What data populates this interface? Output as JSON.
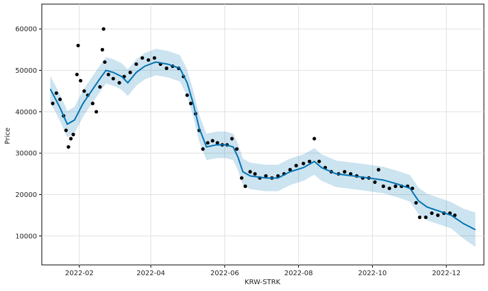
{
  "chart_data": {
    "type": "scatter",
    "xlabel": "KRW-STRK",
    "ylabel": "Price",
    "x_range": [
      "2022-01-01",
      "2023-01-01"
    ],
    "ylim": [
      3000,
      66000
    ],
    "grid": true,
    "x_ticks": [
      "2022-02",
      "2022-04",
      "2022-06",
      "2022-08",
      "2022-10",
      "2022-12"
    ],
    "y_ticks": [
      10000,
      20000,
      30000,
      40000,
      50000,
      60000
    ],
    "colors": {
      "observed": "#000000",
      "forecast": "#0072B2",
      "interval": "#0072B2"
    },
    "series": [
      {
        "role": "observed",
        "points": [
          [
            "2022-01-10",
            42000
          ],
          [
            "2022-01-13",
            44500
          ],
          [
            "2022-01-16",
            43000
          ],
          [
            "2022-01-19",
            39000
          ],
          [
            "2022-01-21",
            35500
          ],
          [
            "2022-01-23",
            31500
          ],
          [
            "2022-01-25",
            33500
          ],
          [
            "2022-01-27",
            34500
          ],
          [
            "2022-01-30",
            49000
          ],
          [
            "2022-01-31",
            56000
          ],
          [
            "2022-02-02",
            47500
          ],
          [
            "2022-02-05",
            45000
          ],
          [
            "2022-02-08",
            44000
          ],
          [
            "2022-02-12",
            42000
          ],
          [
            "2022-02-15",
            40000
          ],
          [
            "2022-02-18",
            46000
          ],
          [
            "2022-02-20",
            55000
          ],
          [
            "2022-02-21",
            60000
          ],
          [
            "2022-02-22",
            52000
          ],
          [
            "2022-02-25",
            49000
          ],
          [
            "2022-03-01",
            48000
          ],
          [
            "2022-03-06",
            47000
          ],
          [
            "2022-03-10",
            48500
          ],
          [
            "2022-03-15",
            49500
          ],
          [
            "2022-03-20",
            51500
          ],
          [
            "2022-03-25",
            53000
          ],
          [
            "2022-03-30",
            52500
          ],
          [
            "2022-04-04",
            53000
          ],
          [
            "2022-04-09",
            51500
          ],
          [
            "2022-04-14",
            50500
          ],
          [
            "2022-04-19",
            51000
          ],
          [
            "2022-04-24",
            50500
          ],
          [
            "2022-04-28",
            48500
          ],
          [
            "2022-05-01",
            44000
          ],
          [
            "2022-05-04",
            42000
          ],
          [
            "2022-05-08",
            39500
          ],
          [
            "2022-05-11",
            35500
          ],
          [
            "2022-05-14",
            31000
          ],
          [
            "2022-05-18",
            32500
          ],
          [
            "2022-05-22",
            33000
          ],
          [
            "2022-05-26",
            32500
          ],
          [
            "2022-05-30",
            32000
          ],
          [
            "2022-06-03",
            32000
          ],
          [
            "2022-06-07",
            33500
          ],
          [
            "2022-06-11",
            31000
          ],
          [
            "2022-06-15",
            24000
          ],
          [
            "2022-06-18",
            22000
          ],
          [
            "2022-06-22",
            25500
          ],
          [
            "2022-06-26",
            25000
          ],
          [
            "2022-06-30",
            24000
          ],
          [
            "2022-07-05",
            24500
          ],
          [
            "2022-07-10",
            24000
          ],
          [
            "2022-07-15",
            24500
          ],
          [
            "2022-07-20",
            25000
          ],
          [
            "2022-07-25",
            26000
          ],
          [
            "2022-07-30",
            27000
          ],
          [
            "2022-08-05",
            27500
          ],
          [
            "2022-08-10",
            28000
          ],
          [
            "2022-08-14",
            33500
          ],
          [
            "2022-08-18",
            28000
          ],
          [
            "2022-08-23",
            26500
          ],
          [
            "2022-08-28",
            25500
          ],
          [
            "2022-09-03",
            25000
          ],
          [
            "2022-09-08",
            25500
          ],
          [
            "2022-09-13",
            25000
          ],
          [
            "2022-09-18",
            24500
          ],
          [
            "2022-09-23",
            24000
          ],
          [
            "2022-09-28",
            24000
          ],
          [
            "2022-10-03",
            23000
          ],
          [
            "2022-10-06",
            26000
          ],
          [
            "2022-10-10",
            22000
          ],
          [
            "2022-10-15",
            21500
          ],
          [
            "2022-10-20",
            22000
          ],
          [
            "2022-10-25",
            22000
          ],
          [
            "2022-10-30",
            22000
          ],
          [
            "2022-11-03",
            21500
          ],
          [
            "2022-11-06",
            18000
          ],
          [
            "2022-11-09",
            14500
          ],
          [
            "2022-11-14",
            14500
          ],
          [
            "2022-11-19",
            15500
          ],
          [
            "2022-11-24",
            15000
          ],
          [
            "2022-11-29",
            15500
          ],
          [
            "2022-12-04",
            15500
          ],
          [
            "2022-12-08",
            15000
          ]
        ]
      },
      {
        "role": "forecast",
        "points": [
          [
            "2022-01-08",
            45500
          ],
          [
            "2022-01-16",
            41000
          ],
          [
            "2022-01-22",
            37000
          ],
          [
            "2022-01-28",
            38000
          ],
          [
            "2022-02-04",
            42000
          ],
          [
            "2022-02-11",
            45000
          ],
          [
            "2022-02-18",
            48000
          ],
          [
            "2022-02-23",
            50000
          ],
          [
            "2022-03-01",
            49500
          ],
          [
            "2022-03-08",
            48500
          ],
          [
            "2022-03-13",
            47000
          ],
          [
            "2022-03-20",
            49500
          ],
          [
            "2022-03-27",
            51000
          ],
          [
            "2022-04-05",
            52000
          ],
          [
            "2022-04-15",
            51500
          ],
          [
            "2022-04-25",
            50500
          ],
          [
            "2022-05-01",
            47000
          ],
          [
            "2022-05-06",
            42000
          ],
          [
            "2022-05-11",
            36000
          ],
          [
            "2022-05-17",
            31500
          ],
          [
            "2022-05-25",
            32000
          ],
          [
            "2022-06-02",
            32000
          ],
          [
            "2022-06-08",
            31500
          ],
          [
            "2022-06-12",
            29000
          ],
          [
            "2022-06-16",
            25500
          ],
          [
            "2022-06-22",
            24500
          ],
          [
            "2022-07-05",
            24000
          ],
          [
            "2022-07-15",
            24000
          ],
          [
            "2022-07-25",
            25500
          ],
          [
            "2022-08-05",
            26500
          ],
          [
            "2022-08-14",
            28000
          ],
          [
            "2022-08-20",
            26500
          ],
          [
            "2022-09-01",
            25000
          ],
          [
            "2022-09-15",
            24500
          ],
          [
            "2022-09-28",
            24000
          ],
          [
            "2022-10-10",
            23500
          ],
          [
            "2022-10-22",
            22500
          ],
          [
            "2022-11-01",
            21500
          ],
          [
            "2022-11-08",
            18500
          ],
          [
            "2022-11-15",
            17000
          ],
          [
            "2022-11-25",
            16000
          ],
          [
            "2022-12-05",
            15000
          ],
          [
            "2022-12-15",
            13000
          ],
          [
            "2022-12-25",
            11500
          ]
        ]
      }
    ]
  }
}
